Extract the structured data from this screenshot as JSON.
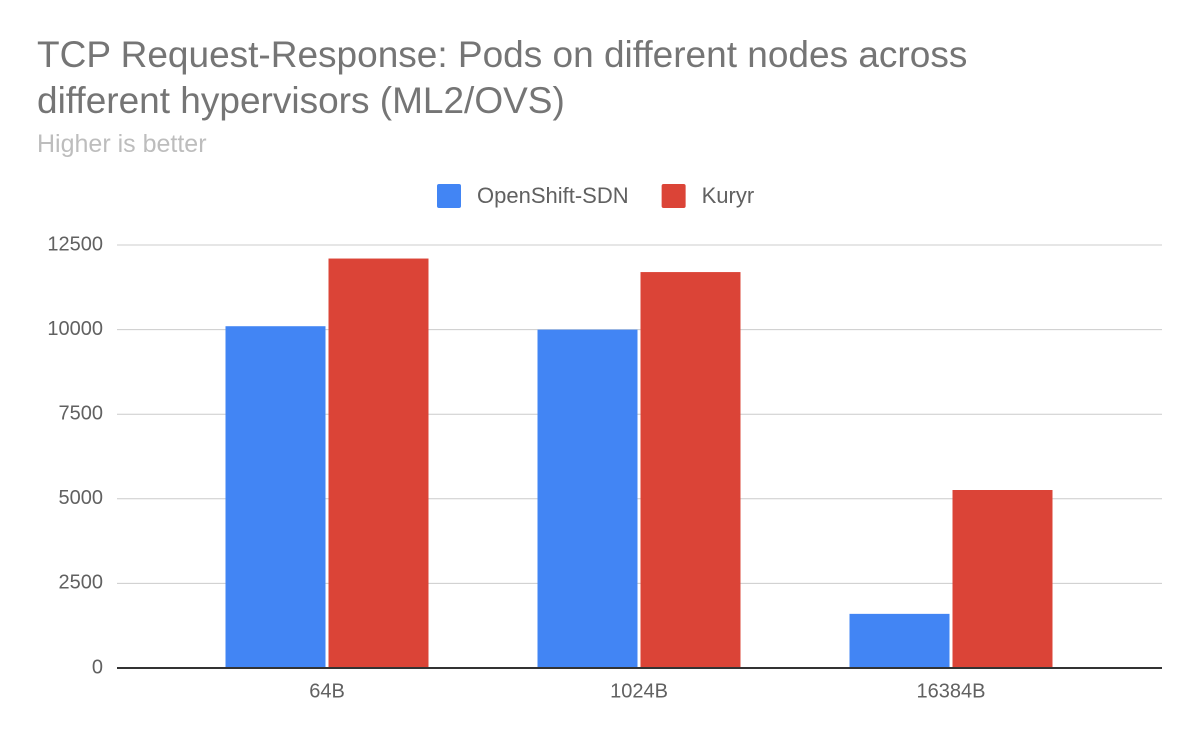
{
  "chart_data": {
    "type": "bar",
    "title": "TCP Request-Response: Pods on different nodes across different hypervisors (ML2/OVS)",
    "subtitle": "Higher is better",
    "categories": [
      "64B",
      "1024B",
      "16384B"
    ],
    "series": [
      {
        "name": "OpenShift-SDN",
        "color": "#4285f4",
        "values": [
          10100,
          10000,
          1600
        ]
      },
      {
        "name": "Kuryr",
        "color": "#db4437",
        "values": [
          12100,
          11700,
          5260
        ]
      }
    ],
    "ylim": [
      0,
      12500
    ],
    "yticks": [
      0,
      2500,
      5000,
      7500,
      10000,
      12500
    ],
    "grid": true,
    "legend": "top"
  }
}
